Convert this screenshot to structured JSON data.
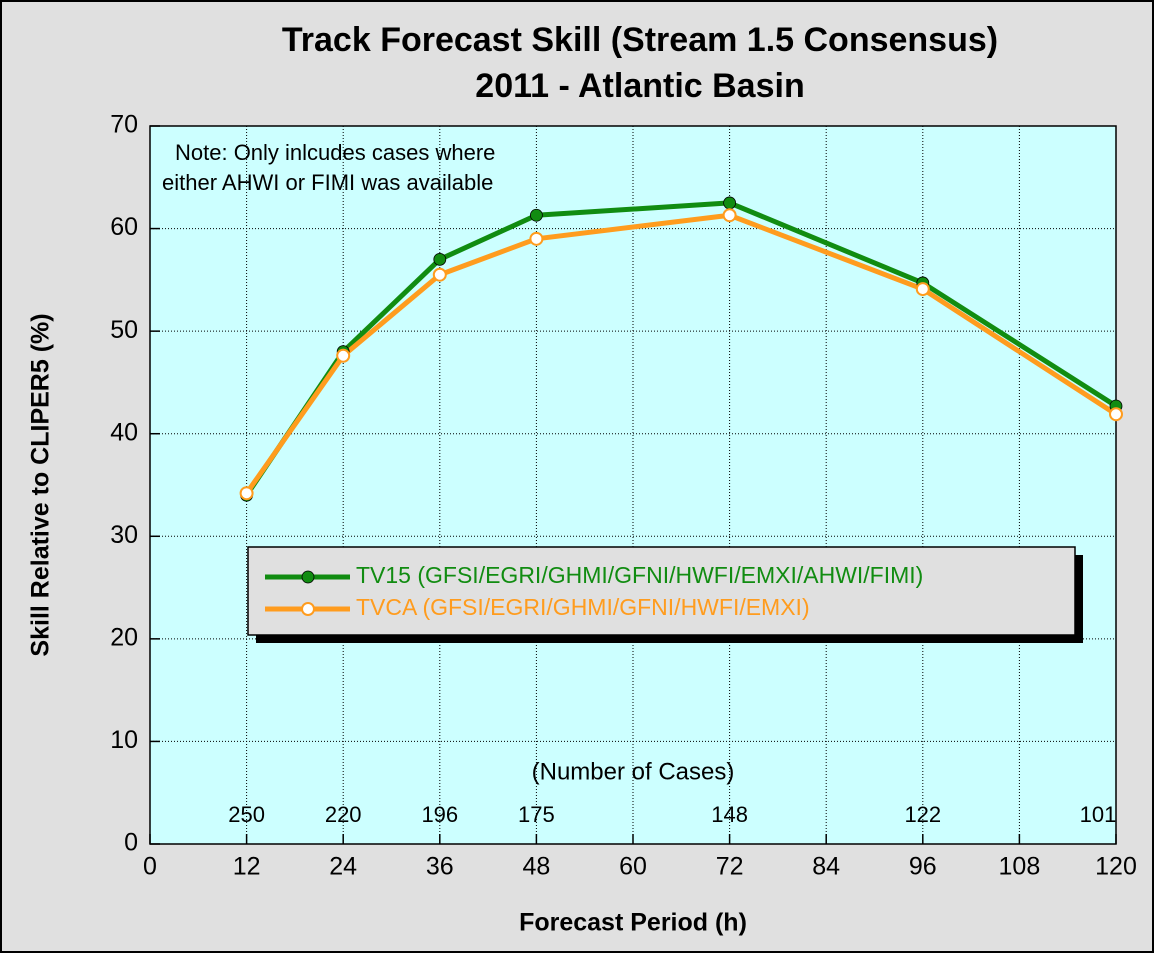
{
  "chart_data": {
    "type": "line",
    "title": "Track Forecast Skill (Stream 1.5 Consensus)",
    "subtitle": "2011 - Atlantic Basin",
    "xlabel": "Forecast Period (h)",
    "ylabel": "Skill Relative to CLIPER5 (%)",
    "annotation": [
      "Note:  Only inlcudes cases where",
      "either AHWI or FIMI was available"
    ],
    "x": [
      12,
      24,
      36,
      48,
      72,
      96,
      120
    ],
    "series": [
      {
        "name": "TV15 (GFSI/EGRI/GHMI/GFNI/HWFI/EMXI/AHWI/FIMI)",
        "color": "#118c11",
        "marker": "filled",
        "values": [
          34,
          48,
          57,
          61.3,
          62.5,
          54.7,
          42.7
        ]
      },
      {
        "name": "TVCA (GFSI/EGRI/GHMI/GFNI/HWFI/EMXI)",
        "color": "#ff9c1e",
        "marker": "hollow",
        "values": [
          34.2,
          47.6,
          55.5,
          59,
          61.3,
          54.1,
          41.9
        ]
      }
    ],
    "case_counts": {
      "label": "(Number of Cases)",
      "values": [
        250,
        220,
        196,
        175,
        148,
        122,
        101
      ]
    },
    "xlim": [
      0,
      120
    ],
    "xticks": [
      0,
      12,
      24,
      36,
      48,
      60,
      72,
      84,
      96,
      108,
      120
    ],
    "ylim": [
      0,
      70
    ],
    "yticks": [
      0,
      10,
      20,
      30,
      40,
      50,
      60,
      70
    ],
    "grid": true
  }
}
